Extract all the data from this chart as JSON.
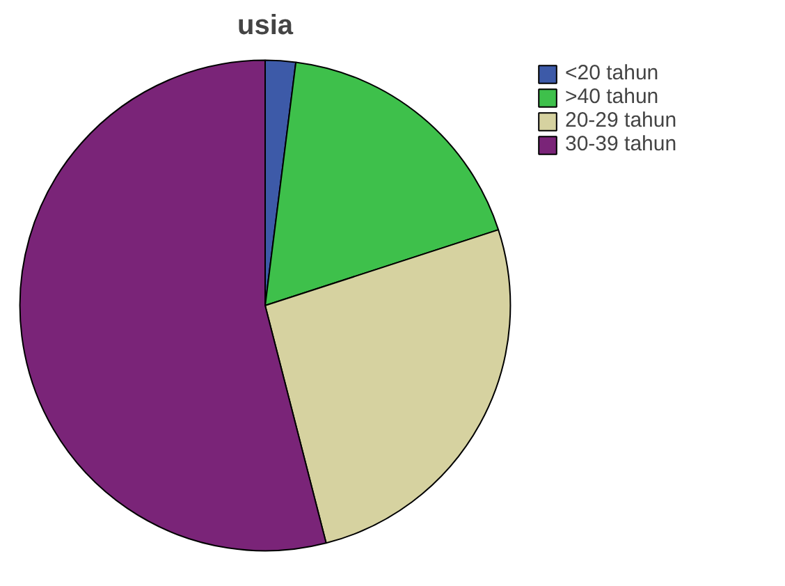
{
  "chart_data": {
    "type": "pie",
    "title": "usia",
    "categories": [
      "<20 tahun",
      ">40 tahun",
      "20-29 tahun",
      "30-39 tahun"
    ],
    "values": [
      2,
      18,
      26,
      54
    ],
    "colors": [
      "#3d5aa8",
      "#3ec04b",
      "#d6d2a0",
      "#7a2478"
    ],
    "legend": "top right"
  }
}
